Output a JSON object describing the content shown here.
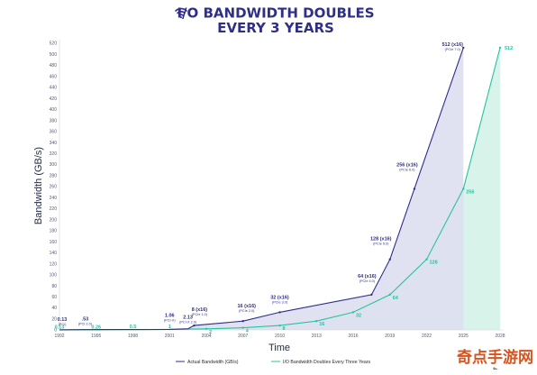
{
  "chart_data": {
    "type": "line",
    "title_line1": "I/O BANDWIDTH DOUBLES",
    "title_line2": "EVERY 3 YEARS",
    "xlabel": "Time",
    "ylabel": "Bandwidth (GB/s)",
    "x_ticks": [
      "1992",
      "1995",
      "1998",
      "2001",
      "2004",
      "2007",
      "2010",
      "2013",
      "2016",
      "2019",
      "2022",
      "2025",
      "2028"
    ],
    "y_ticks": [
      0,
      20,
      40,
      60,
      80,
      100,
      120,
      140,
      160,
      180,
      200,
      220,
      240,
      260,
      280,
      300,
      320,
      340,
      360,
      380,
      400,
      420,
      440,
      460,
      480,
      500,
      520
    ],
    "xlim": [
      1992,
      2028
    ],
    "ylim": [
      0,
      520
    ],
    "grid": false,
    "legend_position": "bottom-center",
    "series": [
      {
        "name": "Actual Bandwidth (GB/s)",
        "color": "#2e2f86",
        "fill": "#dedff0",
        "points": [
          {
            "x": 1992,
            "y": 0.13,
            "label": "0.13",
            "sub": "(PCI)"
          },
          {
            "x": 1993.5,
            "y": 0.53,
            "label": ".53",
            "sub": "(PCI 2.0)"
          },
          {
            "x": 2001,
            "y": 1.06,
            "label": "1.06",
            "sub": "(PCI-X)"
          },
          {
            "x": 2002.5,
            "y": 2.13,
            "label": "2.13",
            "sub": "(PCI-X 2.0)"
          },
          {
            "x": 2003,
            "y": 8,
            "label": "8 (x16)",
            "sub": "(PCIe 1.0)"
          },
          {
            "x": 2007,
            "y": 16,
            "label": "16 (x16)",
            "sub": "(PCIe 2.0)"
          },
          {
            "x": 2010,
            "y": 32,
            "label": "32 (x16)",
            "sub": "(PCIe 3.0)"
          },
          {
            "x": 2017.5,
            "y": 64,
            "label": "64 (x16)",
            "sub": "(PCIe 4.0)"
          },
          {
            "x": 2019,
            "y": 128,
            "label": "128 (x16)",
            "sub": "(PCIe 5.0)"
          },
          {
            "x": 2021,
            "y": 256,
            "label": "256 (x16)",
            "sub": "(PCIe 6.0)"
          },
          {
            "x": 2025,
            "y": 512,
            "label": "512 (x16)",
            "sub": "(PCIe 7.0)"
          }
        ]
      },
      {
        "name": "I/O Bandwidth Doubles Every Three Years",
        "color": "#27c4a0",
        "fill": "#d7f3ea",
        "points": [
          {
            "x": 1992,
            "y": 0.13,
            "label": "0.13"
          },
          {
            "x": 1995,
            "y": 0.26,
            "label": "0.26"
          },
          {
            "x": 1998,
            "y": 0.5,
            "label": "0.5"
          },
          {
            "x": 2001,
            "y": 1,
            "label": "1"
          },
          {
            "x": 2004,
            "y": 2,
            "label": "2"
          },
          {
            "x": 2007,
            "y": 4,
            "label": "4"
          },
          {
            "x": 2010,
            "y": 8,
            "label": "8"
          },
          {
            "x": 2013,
            "y": 16,
            "label": "16"
          },
          {
            "x": 2016,
            "y": 32,
            "label": "32"
          },
          {
            "x": 2019,
            "y": 64,
            "label": "64"
          },
          {
            "x": 2022,
            "y": 128,
            "label": "128"
          },
          {
            "x": 2025,
            "y": 256,
            "label": "256"
          },
          {
            "x": 2028,
            "y": 512,
            "label": "512"
          }
        ]
      }
    ]
  },
  "watermark": {
    "text": "奇点手游网",
    "color": "#d9531e"
  },
  "icons": {
    "title_icon": "wifi-icon"
  }
}
